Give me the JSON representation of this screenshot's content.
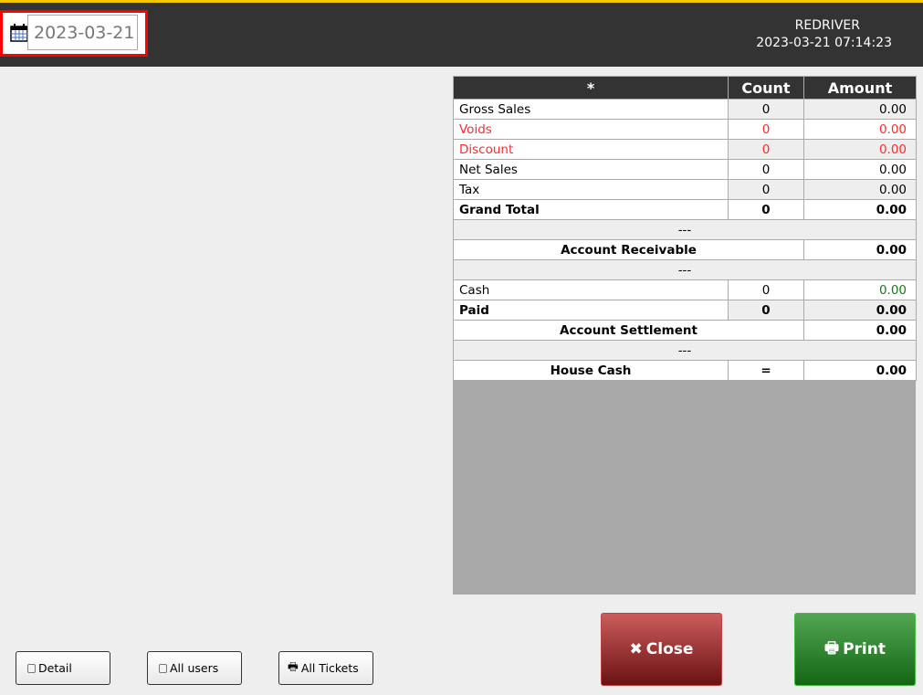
{
  "header": {
    "date_value": "2023-03-21",
    "store": "REDRIVER",
    "datetime": "2023-03-21 07:14:23"
  },
  "table": {
    "headers": [
      "*",
      "Count",
      "Amount"
    ],
    "rows": [
      {
        "label": "Gross Sales",
        "count": "0",
        "amount": "0.00",
        "alt": true
      },
      {
        "label": "Voids",
        "count": "0",
        "amount": "0.00",
        "color": "#ff2a2a"
      },
      {
        "label": "Discount",
        "count": "0",
        "amount": "0.00",
        "color": "#ff2a2a",
        "alt": true
      },
      {
        "label": "Net Sales",
        "count": "0",
        "amount": "0.00"
      },
      {
        "label": "Tax",
        "count": "0",
        "amount": "0.00",
        "alt": true
      },
      {
        "label": "Grand Total",
        "count": "0",
        "amount": "0.00",
        "bold": true
      },
      {
        "sep": "---"
      },
      {
        "label": "Account Receivable",
        "amount": "0.00",
        "bold": true,
        "span": true
      },
      {
        "sep": "---"
      },
      {
        "label": "Cash",
        "count": "0",
        "amount": "0.00",
        "amount_color": "#1a7a1a"
      },
      {
        "label": "Paid",
        "count": "0",
        "amount": "0.00",
        "bold": true,
        "alt": true
      },
      {
        "label": "Account Settlement",
        "amount": "0.00",
        "bold": true,
        "span": true
      },
      {
        "sep": "---"
      },
      {
        "label": "House Cash",
        "count": "=",
        "amount": "0.00",
        "bold": true,
        "center": true
      }
    ]
  },
  "footer": {
    "detail": "Detail",
    "all_users": "All users",
    "all_tickets": "All Tickets",
    "close": "Close",
    "print": "Print"
  },
  "colors": {
    "header_bg": "#333333",
    "accent": "#f5c800",
    "close": "#a03030",
    "print": "#2a8a2a"
  }
}
